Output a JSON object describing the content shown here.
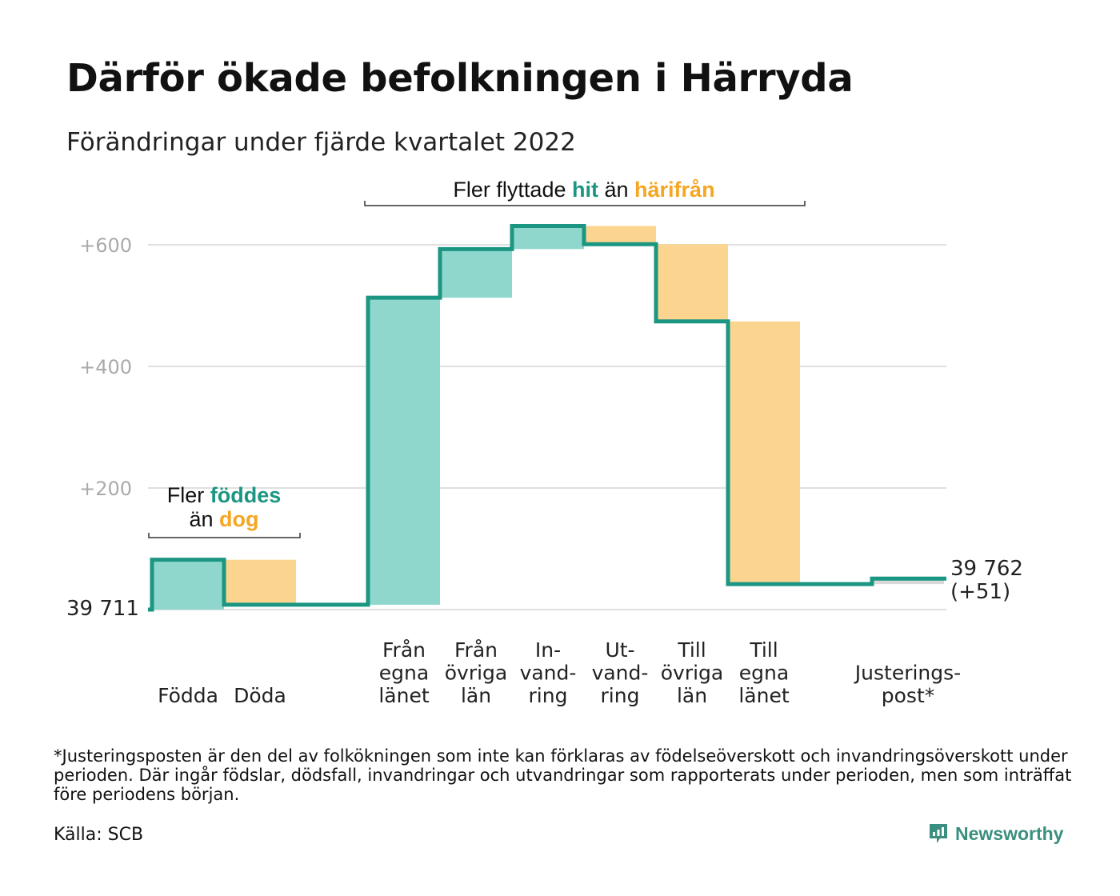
{
  "title": "Därför ökade befolkningen i Härryda",
  "subtitle": "Förändringar under fjärde kvartalet 2022",
  "colors": {
    "increase": "#8fd7cc",
    "decrease": "#fbd58f",
    "line": "#1a9682",
    "adjustment": "#d9d9d9",
    "grid": "#e0e0e0",
    "tick": "#aaaaaa",
    "accent_teal": "#1a9682",
    "accent_orange": "#f5a623"
  },
  "chart_data": {
    "type": "waterfall",
    "start": {
      "label": "39 711",
      "value": 39711
    },
    "end": {
      "label_line1": "39 762",
      "label_line2": "(+51)",
      "value": 39762,
      "change": 51
    },
    "ylim": [
      0,
      640
    ],
    "yticks": [
      {
        "value": 200,
        "label": "+200"
      },
      {
        "value": 400,
        "label": "+400"
      },
      {
        "value": 600,
        "label": "+600"
      }
    ],
    "steps": [
      {
        "name": "Födda",
        "label": [
          "Födda"
        ],
        "change": 82,
        "kind": "increase"
      },
      {
        "name": "Döda",
        "label": [
          "Döda"
        ],
        "change": -74,
        "kind": "decrease"
      },
      {
        "name": "gap",
        "label": [],
        "change": 0,
        "kind": "gap"
      },
      {
        "name": "Från egna länet",
        "label": [
          "Från",
          "egna",
          "länet"
        ],
        "change": 505,
        "kind": "increase"
      },
      {
        "name": "Från övriga län",
        "label": [
          "Från",
          "övriga",
          "län"
        ],
        "change": 80,
        "kind": "increase"
      },
      {
        "name": "Invandring",
        "label": [
          "In-",
          "vand-",
          "ring"
        ],
        "change": 38,
        "kind": "increase"
      },
      {
        "name": "Utvandring",
        "label": [
          "Ut-",
          "vand-",
          "ring"
        ],
        "change": -30,
        "kind": "decrease"
      },
      {
        "name": "Till övriga län",
        "label": [
          "Till",
          "övriga",
          "län"
        ],
        "change": -127,
        "kind": "decrease"
      },
      {
        "name": "Till egna länet",
        "label": [
          "Till",
          "egna",
          "länet"
        ],
        "change": -432,
        "kind": "decrease"
      },
      {
        "name": "gap",
        "label": [],
        "change": 0,
        "kind": "gap"
      },
      {
        "name": "Justeringspost*",
        "label": [
          "Justerings-",
          "post*"
        ],
        "change": 9,
        "kind": "adjustment"
      }
    ],
    "annotations": [
      {
        "id": "birth",
        "parts": [
          {
            "line": 1,
            "text": "Fler ",
            "color": "dark"
          },
          {
            "line": 1,
            "text": "föddes",
            "color": "teal"
          },
          {
            "line": 2,
            "text": "än ",
            "color": "dark"
          },
          {
            "line": 2,
            "text": "dog",
            "color": "orange"
          }
        ]
      },
      {
        "id": "migration",
        "parts": [
          {
            "line": 1,
            "text": "Fler flyttade ",
            "color": "dark"
          },
          {
            "line": 1,
            "text": "hit",
            "color": "teal"
          },
          {
            "line": 1,
            "text": " än ",
            "color": "dark"
          },
          {
            "line": 1,
            "text": "härifrån",
            "color": "orange"
          }
        ]
      }
    ]
  },
  "footnote": "*Justeringsposten är den del av folkökningen som inte kan förklaras av födelseöverskott och invandringsöverskott under perioden. Där ingår födslar, dödsfall, invandringar och utvandringar som rapporterats under perioden, men som inträffat före periodens början.",
  "source": "Källa: SCB",
  "brand": {
    "name": "Newsworthy",
    "icon": "newsworthy-logo-icon"
  }
}
